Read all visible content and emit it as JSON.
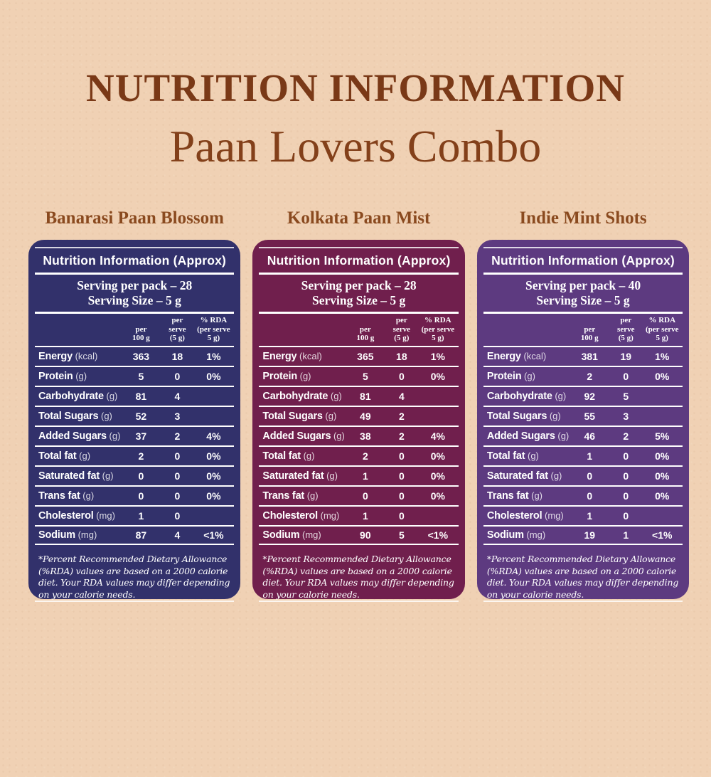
{
  "colors": {
    "background": "#f0d1b4",
    "title": "#7a3917",
    "subtitle": "#83401a",
    "product_title": "#8a4a1f",
    "card_backgrounds": [
      "#32316b",
      "#701f4d",
      "#5d3a80"
    ],
    "card_text": "#ffffff"
  },
  "page": {
    "title": "NUTRITION INFORMATION",
    "subtitle": "Paan Lovers Combo"
  },
  "shared": {
    "card_header": "Nutrition Information (Approx)",
    "columns": {
      "per_100g": "per\n100 g",
      "per_serve": "per\nserve\n(5 g)",
      "rda": "% RDA\n(per serve\n5 g)"
    },
    "footnote": "*Percent Recommended Dietary Allowance (%RDA) values are based on a 2000 calorie diet. Your RDA values may differ depending on your calorie needs."
  },
  "products": [
    {
      "name": "Banarasi Paan Blossom",
      "color": "#32316b",
      "serving_per_pack": "Serving per pack – 28",
      "serving_size": "Serving Size – 5 g",
      "rows": [
        {
          "label": "Energy",
          "unit": "(kcal)",
          "per_100g": "363",
          "per_serve": "18",
          "rda": "1%"
        },
        {
          "label": "Protein",
          "unit": "(g)",
          "per_100g": "5",
          "per_serve": "0",
          "rda": "0%"
        },
        {
          "label": "Carbohydrate",
          "unit": "(g)",
          "per_100g": "81",
          "per_serve": "4",
          "rda": ""
        },
        {
          "label": "Total Sugars",
          "unit": "(g)",
          "per_100g": "52",
          "per_serve": "3",
          "rda": ""
        },
        {
          "label": "Added Sugars",
          "unit": "(g)",
          "per_100g": "37",
          "per_serve": "2",
          "rda": "4%"
        },
        {
          "label": "Total fat",
          "unit": "(g)",
          "per_100g": "2",
          "per_serve": "0",
          "rda": "0%"
        },
        {
          "label": "Saturated fat",
          "unit": "(g)",
          "per_100g": "0",
          "per_serve": "0",
          "rda": "0%"
        },
        {
          "label": "Trans fat",
          "unit": "(g)",
          "per_100g": "0",
          "per_serve": "0",
          "rda": "0%"
        },
        {
          "label": "Cholesterol",
          "unit": "(mg)",
          "per_100g": "1",
          "per_serve": "0",
          "rda": ""
        },
        {
          "label": "Sodium",
          "unit": "(mg)",
          "per_100g": "87",
          "per_serve": "4",
          "rda": "<1%"
        }
      ]
    },
    {
      "name": "Kolkata Paan Mist",
      "color": "#701f4d",
      "serving_per_pack": "Serving per pack – 28",
      "serving_size": "Serving Size – 5 g",
      "rows": [
        {
          "label": "Energy",
          "unit": "(kcal)",
          "per_100g": "365",
          "per_serve": "18",
          "rda": "1%"
        },
        {
          "label": "Protein",
          "unit": "(g)",
          "per_100g": "5",
          "per_serve": "0",
          "rda": "0%"
        },
        {
          "label": "Carbohydrate",
          "unit": "(g)",
          "per_100g": "81",
          "per_serve": "4",
          "rda": ""
        },
        {
          "label": "Total Sugars",
          "unit": "(g)",
          "per_100g": "49",
          "per_serve": "2",
          "rda": ""
        },
        {
          "label": "Added Sugars",
          "unit": "(g)",
          "per_100g": "38",
          "per_serve": "2",
          "rda": "4%"
        },
        {
          "label": "Total fat",
          "unit": "(g)",
          "per_100g": "2",
          "per_serve": "0",
          "rda": "0%"
        },
        {
          "label": "Saturated fat",
          "unit": "(g)",
          "per_100g": "1",
          "per_serve": "0",
          "rda": "0%"
        },
        {
          "label": "Trans fat",
          "unit": "(g)",
          "per_100g": "0",
          "per_serve": "0",
          "rda": "0%"
        },
        {
          "label": "Cholesterol",
          "unit": "(mg)",
          "per_100g": "1",
          "per_serve": "0",
          "rda": ""
        },
        {
          "label": "Sodium",
          "unit": "(mg)",
          "per_100g": "90",
          "per_serve": "5",
          "rda": "<1%"
        }
      ]
    },
    {
      "name": "Indie Mint Shots",
      "color": "#5d3a80",
      "serving_per_pack": "Serving per pack – 40",
      "serving_size": "Serving Size – 5 g",
      "rows": [
        {
          "label": "Energy",
          "unit": "(kcal)",
          "per_100g": "381",
          "per_serve": "19",
          "rda": "1%"
        },
        {
          "label": "Protein",
          "unit": "(g)",
          "per_100g": "2",
          "per_serve": "0",
          "rda": "0%"
        },
        {
          "label": "Carbohydrate",
          "unit": "(g)",
          "per_100g": "92",
          "per_serve": "5",
          "rda": ""
        },
        {
          "label": "Total Sugars",
          "unit": "(g)",
          "per_100g": "55",
          "per_serve": "3",
          "rda": ""
        },
        {
          "label": "Added Sugars",
          "unit": "(g)",
          "per_100g": "46",
          "per_serve": "2",
          "rda": "5%"
        },
        {
          "label": "Total fat",
          "unit": "(g)",
          "per_100g": "1",
          "per_serve": "0",
          "rda": "0%"
        },
        {
          "label": "Saturated fat",
          "unit": "(g)",
          "per_100g": "0",
          "per_serve": "0",
          "rda": "0%"
        },
        {
          "label": "Trans fat",
          "unit": "(g)",
          "per_100g": "0",
          "per_serve": "0",
          "rda": "0%"
        },
        {
          "label": "Cholesterol",
          "unit": "(mg)",
          "per_100g": "1",
          "per_serve": "0",
          "rda": ""
        },
        {
          "label": "Sodium",
          "unit": "(mg)",
          "per_100g": "19",
          "per_serve": "1",
          "rda": "<1%"
        }
      ]
    }
  ]
}
